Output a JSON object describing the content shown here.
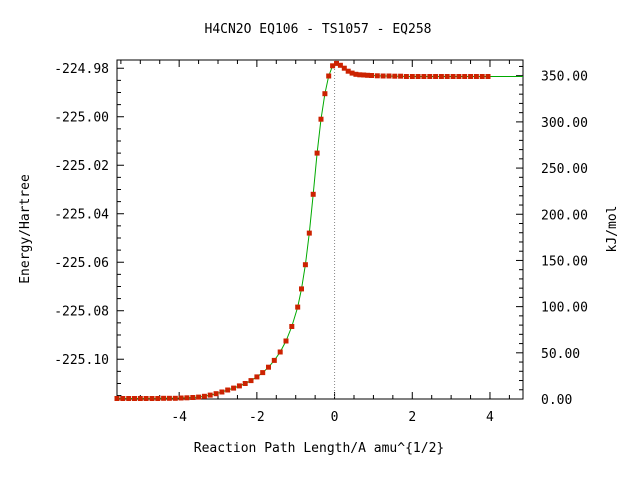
{
  "chart_data": {
    "type": "scatter",
    "title": "H4CN2O   EQ106 - TS1057 - EQ258",
    "xlabel": "Reaction Path Length/A amu^{1/2}",
    "ylabel_left": "Energy/Hartree",
    "ylabel_right": "kJ/mol",
    "xlim": [
      -5.6,
      4.85
    ],
    "ylim_left": [
      -225.1164,
      -224.9766
    ],
    "ylim_right": [
      0,
      367
    ],
    "x_ticks": [
      -4,
      -2,
      0,
      2,
      4
    ],
    "x_tick_labels": [
      "-4",
      "-2",
      "0",
      "2",
      "4"
    ],
    "y_left_ticks": [
      -224.98,
      -225.0,
      -225.02,
      -225.04,
      -225.06,
      -225.08,
      -225.1
    ],
    "y_left_tick_labels": [
      "-224.98",
      "-225.00",
      "-225.02",
      "-225.04",
      "-225.06",
      "-225.08",
      "-225.10"
    ],
    "y_right_ticks": [
      0,
      50,
      100,
      150,
      200,
      250,
      300,
      350
    ],
    "y_right_tick_labels": [
      "0.00",
      "50.00",
      "100.00",
      "150.00",
      "200.00",
      "250.00",
      "300.00",
      "350.00"
    ],
    "ts_x": 0,
    "colors": {
      "points": "#cc2200",
      "curve": "#00aa00",
      "ts_line": "#888888",
      "axes": "#000000"
    },
    "series": [
      {
        "x": [
          -5.6,
          -5.45,
          -5.3,
          -5.15,
          -5.0,
          -4.85,
          -4.7,
          -4.55,
          -4.4,
          -4.25,
          -4.1,
          -3.95,
          -3.8,
          -3.65,
          -3.5,
          -3.35,
          -3.2,
          -3.05,
          -2.9,
          -2.75,
          -2.6,
          -2.45,
          -2.3,
          -2.15,
          -2.0,
          -1.85,
          -1.7,
          -1.55,
          -1.4,
          -1.25,
          -1.1,
          -0.95,
          -0.85,
          -0.75,
          -0.65,
          -0.55,
          -0.45,
          -0.35,
          -0.25,
          -0.15,
          -0.05,
          0.05,
          0.15,
          0.25,
          0.35,
          0.45,
          0.55,
          0.65,
          0.75,
          0.85,
          0.95,
          1.1,
          1.25,
          1.4,
          1.55,
          1.7,
          1.85,
          2.0,
          2.15,
          2.3,
          2.45,
          2.6,
          2.75,
          2.9,
          3.05,
          3.2,
          3.35,
          3.5,
          3.65,
          3.8,
          3.95
        ],
        "y": [
          -225.1162,
          -225.1162,
          -225.1162,
          -225.1162,
          -225.1162,
          -225.1162,
          -225.1162,
          -225.1162,
          -225.1161,
          -225.1161,
          -225.1161,
          -225.116,
          -225.1159,
          -225.1158,
          -225.1156,
          -225.1153,
          -225.1148,
          -225.1142,
          -225.1135,
          -225.1127,
          -225.1119,
          -225.111,
          -225.11,
          -225.1088,
          -225.1073,
          -225.1055,
          -225.1033,
          -225.1005,
          -225.097,
          -225.0925,
          -225.0865,
          -225.0785,
          -225.071,
          -225.061,
          -225.048,
          -225.032,
          -225.015,
          -225.001,
          -224.9905,
          -224.9832,
          -224.979,
          -224.978,
          -224.9788,
          -224.98,
          -224.9812,
          -224.982,
          -224.9825,
          -224.9827,
          -224.9828,
          -224.9829,
          -224.983,
          -224.9831,
          -224.9832,
          -224.9832,
          -224.9833,
          -224.9833,
          -224.9834,
          -224.9834,
          -224.9834,
          -224.9834,
          -224.9834,
          -224.9834,
          -224.9834,
          -224.9834,
          -224.9834,
          -224.9834,
          -224.9834,
          -224.9834,
          -224.9834,
          -224.9834,
          -224.9834
        ]
      }
    ],
    "curve_extends_to_x": 4.85
  }
}
